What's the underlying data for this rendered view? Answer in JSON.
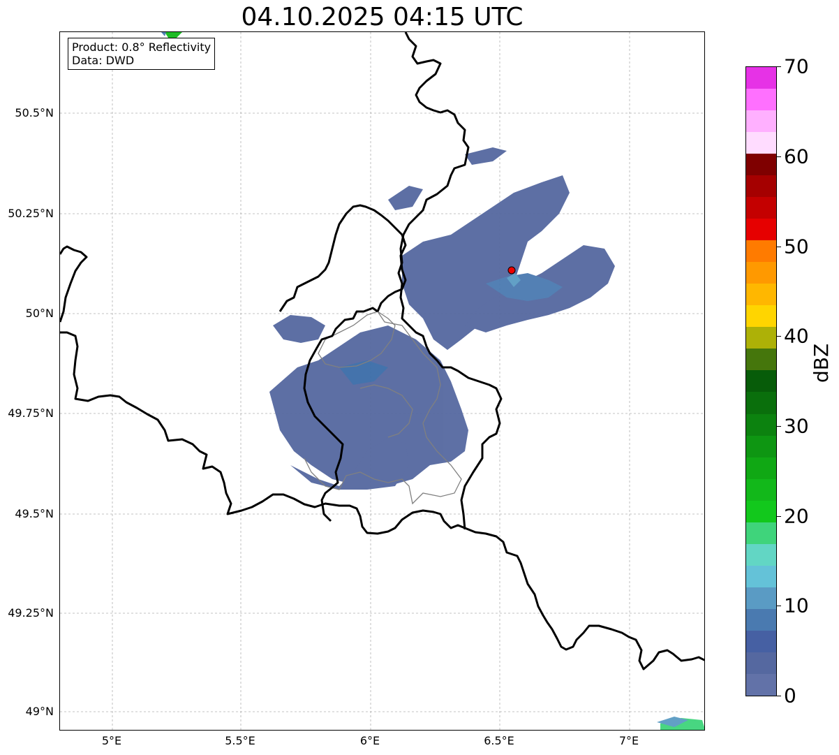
{
  "title": "04.10.2025 04:15 UTC",
  "info": {
    "product": "Product: 0.8° Reflectivity",
    "data": "Data: DWD"
  },
  "lat_ticks": [
    "50.5°N",
    "50.25°N",
    "50°N",
    "49.75°N",
    "49.5°N",
    "49.25°N",
    "49°N"
  ],
  "lon_ticks": [
    "5°E",
    "5.5°E",
    "6°E",
    "6.5°E",
    "7°E"
  ],
  "colorbar": {
    "label": "dBZ",
    "ticks": [
      "0",
      "10",
      "20",
      "30",
      "40",
      "50",
      "60",
      "70"
    ],
    "colors": [
      "#6272a8",
      "#5568a0",
      "#4660a3",
      "#4a7ab0",
      "#5a9bc4",
      "#64c2d8",
      "#62d6c4",
      "#3fd47b",
      "#12c81c",
      "#12b81a",
      "#10a814",
      "#0e9612",
      "#0c820f",
      "#0a6f0c",
      "#075c09",
      "#45760c",
      "#adb107",
      "#ffd500",
      "#ffb700",
      "#ff9900",
      "#ff7b00",
      "#e60000",
      "#c40000",
      "#a50000",
      "#7f0000",
      "#ffdcff",
      "#ffb0ff",
      "#ff70ff",
      "#e632e6"
    ]
  },
  "radar_site": {
    "name": "radar-site"
  },
  "colors": {
    "echo_main": "#5568a0",
    "echo_light": "#4a7ab0",
    "border": "#000000",
    "region_border": "#808080",
    "site": "#ee0000"
  }
}
